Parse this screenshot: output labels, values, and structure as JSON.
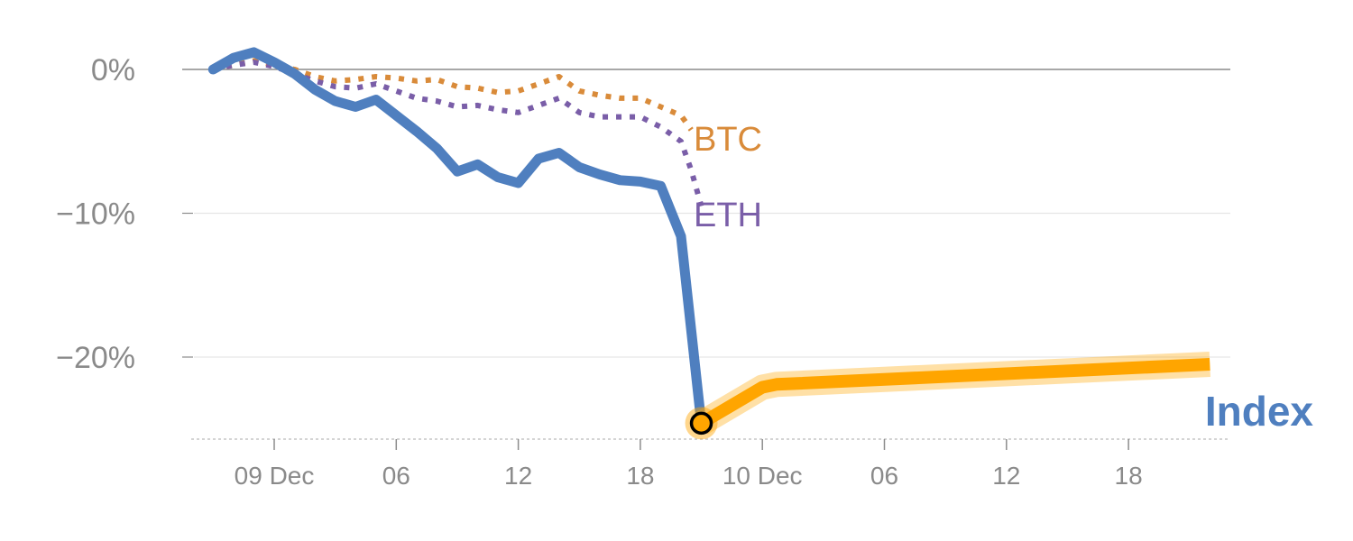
{
  "chart_data": {
    "type": "line",
    "title": "",
    "xlabel": "",
    "ylabel": "",
    "ylim": [
      -25.5,
      2
    ],
    "grid": true,
    "y_ticks": [
      0,
      -10,
      -20
    ],
    "y_tick_labels": [
      "0%",
      "−10%",
      "−20%"
    ],
    "x_ticks": [
      {
        "t": 0,
        "label": "09 Dec"
      },
      {
        "t": 6,
        "label": "06"
      },
      {
        "t": 12,
        "label": "12"
      },
      {
        "t": 18,
        "label": "18"
      },
      {
        "t": 24,
        "label": "10 Dec"
      },
      {
        "t": 30,
        "label": "06"
      },
      {
        "t": 36,
        "label": "12"
      },
      {
        "t": 42,
        "label": "18"
      }
    ],
    "xlim": [
      -4.0,
      47.3
    ],
    "series": [
      {
        "name": "BTC",
        "color": "#d98b3a",
        "style": "dotted",
        "points": [
          [
            -3,
            0
          ],
          [
            -2,
            0.3
          ],
          [
            -1,
            0.6
          ],
          [
            0,
            0.3
          ],
          [
            1,
            0
          ],
          [
            2,
            -0.5
          ],
          [
            3,
            -0.8
          ],
          [
            4,
            -0.7
          ],
          [
            5,
            -0.5
          ],
          [
            6,
            -0.6
          ],
          [
            7,
            -0.8
          ],
          [
            8,
            -0.7
          ],
          [
            9,
            -1.2
          ],
          [
            10,
            -1.3
          ],
          [
            11,
            -1.6
          ],
          [
            12,
            -1.5
          ],
          [
            13,
            -1.0
          ],
          [
            14,
            -0.5
          ],
          [
            15,
            -1.5
          ],
          [
            16,
            -1.8
          ],
          [
            17,
            -2.0
          ],
          [
            18,
            -2.0
          ],
          [
            19,
            -2.6
          ],
          [
            20,
            -3.2
          ],
          [
            20.5,
            -4.2
          ]
        ]
      },
      {
        "name": "ETH",
        "color": "#7a5ea8",
        "style": "dotted",
        "points": [
          [
            -3,
            0
          ],
          [
            -2,
            0.3
          ],
          [
            -1,
            0.5
          ],
          [
            0,
            0.2
          ],
          [
            1,
            -0.3
          ],
          [
            2,
            -0.8
          ],
          [
            3,
            -1.2
          ],
          [
            4,
            -1.3
          ],
          [
            5,
            -1.0
          ],
          [
            6,
            -1.5
          ],
          [
            7,
            -2.0
          ],
          [
            8,
            -2.2
          ],
          [
            9,
            -2.6
          ],
          [
            10,
            -2.5
          ],
          [
            11,
            -2.8
          ],
          [
            12,
            -3.0
          ],
          [
            13,
            -2.5
          ],
          [
            14,
            -2.0
          ],
          [
            15,
            -3.0
          ],
          [
            16,
            -3.3
          ],
          [
            17,
            -3.3
          ],
          [
            18,
            -3.3
          ],
          [
            19,
            -4.0
          ],
          [
            20,
            -5.0
          ],
          [
            20.5,
            -7.0
          ],
          [
            21,
            -9.5
          ]
        ]
      },
      {
        "name": "Index",
        "color": "#4f7fbf",
        "style": "solid",
        "points": [
          [
            -3,
            0
          ],
          [
            -2,
            0.8
          ],
          [
            -1,
            1.2
          ],
          [
            0,
            0.5
          ],
          [
            1,
            -0.3
          ],
          [
            2,
            -1.4
          ],
          [
            3,
            -2.2
          ],
          [
            4,
            -2.6
          ],
          [
            5,
            -2.1
          ],
          [
            6,
            -3.2
          ],
          [
            7,
            -4.3
          ],
          [
            8,
            -5.5
          ],
          [
            9,
            -7.1
          ],
          [
            10,
            -6.6
          ],
          [
            11,
            -7.5
          ],
          [
            12,
            -7.9
          ],
          [
            13,
            -6.2
          ],
          [
            14,
            -5.8
          ],
          [
            15,
            -6.8
          ],
          [
            16,
            -7.3
          ],
          [
            17,
            -7.7
          ],
          [
            18,
            -7.8
          ],
          [
            19,
            -8.1
          ],
          [
            20,
            -11.6
          ],
          [
            21,
            -24.6
          ]
        ]
      },
      {
        "name": "Index-forecast",
        "color": "#ffa500",
        "style": "thick",
        "points": [
          [
            21,
            -24.6
          ],
          [
            24,
            -22.1
          ],
          [
            24.7,
            -21.9
          ],
          [
            46,
            -20.5
          ]
        ]
      }
    ],
    "marker": {
      "t": 21,
      "v": -24.6,
      "fill": "#ffa500",
      "stroke": "#000000"
    },
    "labels": [
      {
        "text": "BTC",
        "color": "#d98b3a"
      },
      {
        "text": "ETH",
        "color": "#7a5ea8"
      },
      {
        "text": "Index",
        "color": "#4f7fbf"
      }
    ]
  }
}
